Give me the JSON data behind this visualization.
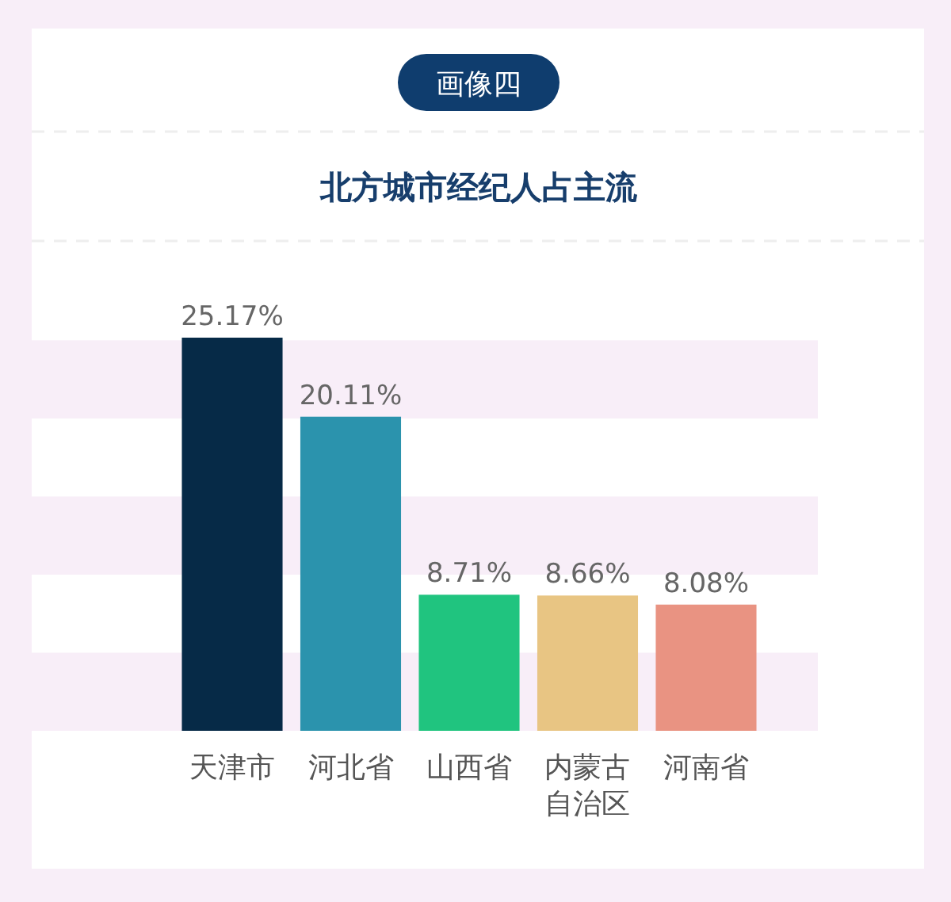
{
  "chart_data": {
    "type": "bar",
    "subtitle": "画像四",
    "title": "北方城市经纪人占主流",
    "categories": [
      "天津市",
      "河北省",
      "山西省",
      "内蒙古自治区",
      "河南省"
    ],
    "values": [
      25.17,
      20.11,
      8.71,
      8.66,
      8.08
    ],
    "colors": [
      "#062a47",
      "#2b93ad",
      "#20c47f",
      "#e8c583",
      "#e99382"
    ],
    "value_labels": [
      "25.17%",
      "20.11%",
      "8.71%",
      "8.66%",
      "8.08%"
    ],
    "bands": [
      {
        "axis": "y",
        "from": 0,
        "to": 5,
        "color": "#f8eef8"
      },
      {
        "axis": "y",
        "from": 10,
        "to": 15,
        "color": "#f8eef8"
      },
      {
        "axis": "y",
        "from": 20,
        "to": 25,
        "color": "#f8eef8"
      }
    ],
    "grid": false
  }
}
